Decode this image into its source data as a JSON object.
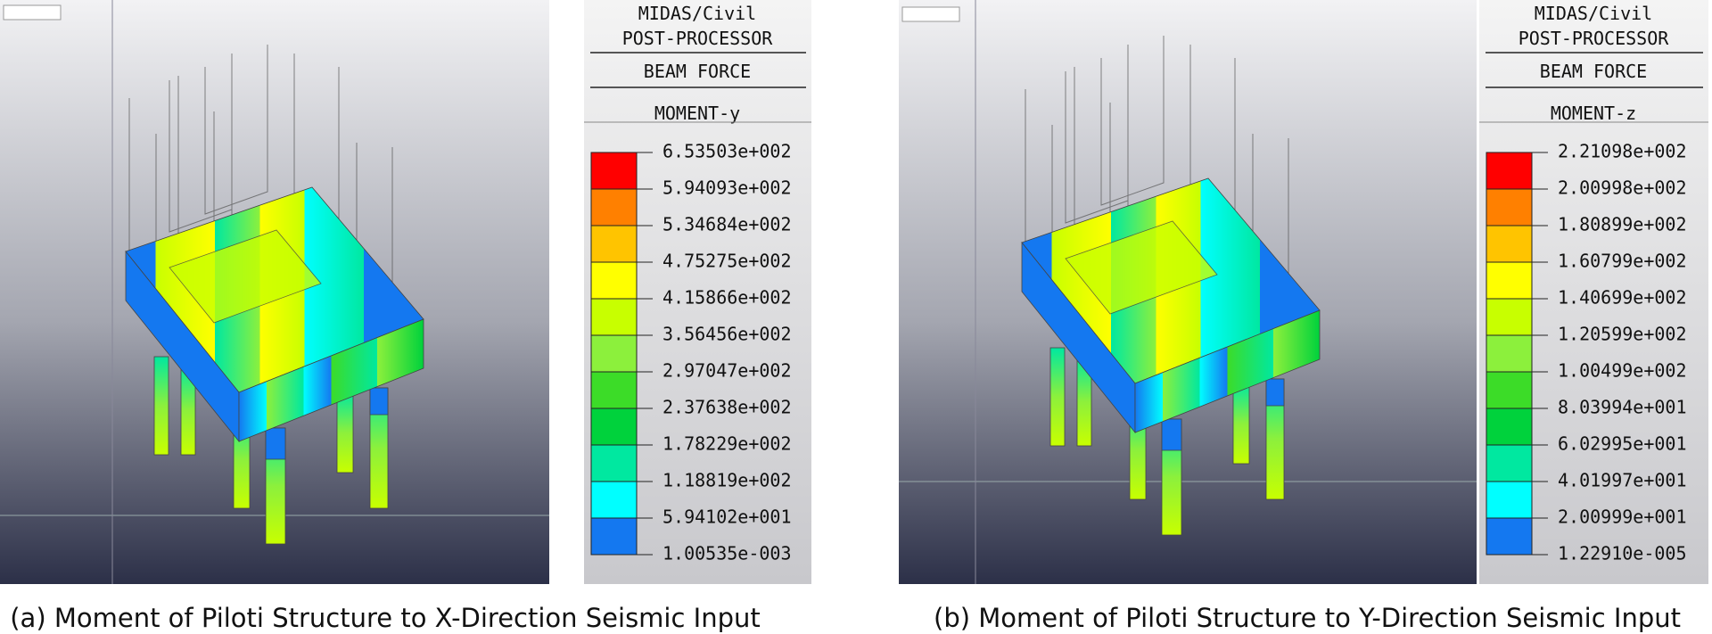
{
  "panels": [
    {
      "header": {
        "program": "MIDAS/Civil",
        "module": "POST-PROCESSOR",
        "result": "BEAM FORCE",
        "component": "MOMENT-y"
      },
      "legend": {
        "labels": [
          "6.53503e+002",
          "5.94093e+002",
          "5.34684e+002",
          "4.75275e+002",
          "4.15866e+002",
          "3.56456e+002",
          "2.97047e+002",
          "2.37638e+002",
          "1.78229e+002",
          "1.18819e+002",
          "5.94102e+001",
          "1.00535e-003"
        ],
        "colors": [
          "#ff0000",
          "#ff8000",
          "#ffc400",
          "#ffff00",
          "#c8ff00",
          "#8cf03c",
          "#3cdc28",
          "#00d23c",
          "#00e8a0",
          "#00ffff",
          "#1478f0"
        ]
      },
      "caption": "(a) Moment of Piloti Structure to X-Direction Seismic Input"
    },
    {
      "header": {
        "program": "MIDAS/Civil",
        "module": "POST-PROCESSOR",
        "result": "BEAM FORCE",
        "component": "MOMENT-z"
      },
      "legend": {
        "labels": [
          "2.21098e+002",
          "2.00998e+002",
          "1.80899e+002",
          "1.60799e+002",
          "1.40699e+002",
          "1.20599e+002",
          "1.00499e+002",
          "8.03994e+001",
          "6.02995e+001",
          "4.01997e+001",
          "2.00999e+001",
          "1.22910e-005"
        ],
        "colors": [
          "#ff0000",
          "#ff8000",
          "#ffc400",
          "#ffff00",
          "#c8ff00",
          "#8cf03c",
          "#3cdc28",
          "#00d23c",
          "#00e8a0",
          "#00ffff",
          "#1478f0"
        ]
      },
      "caption": "(b) Moment of Piloti Structure to Y-Direction Seismic Input"
    }
  ]
}
